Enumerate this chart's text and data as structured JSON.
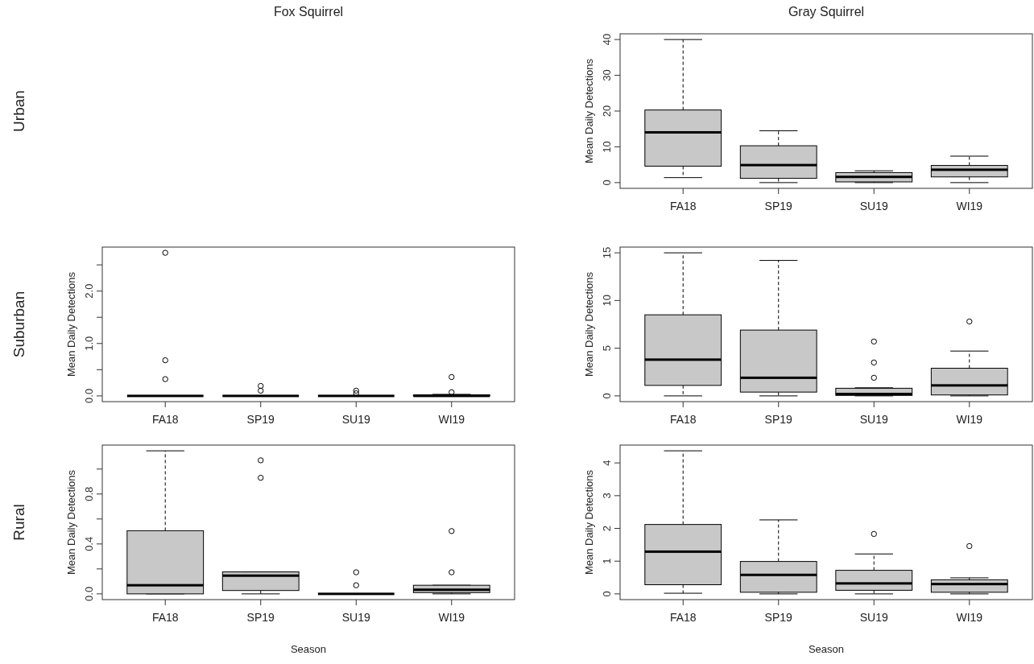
{
  "chart_data": [
    {
      "type": "box",
      "title": "Gray Squirrel",
      "annotations": [
        "Urban"
      ],
      "ylabel": "Mean Daily Detections",
      "categories": [
        "FA18",
        "SP19",
        "SU19",
        "WI19"
      ],
      "ylim": [
        -1.6,
        41.6
      ],
      "yticks": [
        0,
        10,
        20,
        30,
        40
      ],
      "boxes": [
        {
          "low": 1.4,
          "q1": 4.6,
          "median": 14.05,
          "q3": 20.3,
          "high": 40
        },
        {
          "low": 0,
          "q1": 1.2,
          "median": 4.9,
          "q3": 10.3,
          "high": 14.5
        },
        {
          "low": 0,
          "q1": 0.2,
          "median": 1.6,
          "q3": 2.8,
          "high": 3.3
        },
        {
          "low": 0,
          "q1": 1.6,
          "median": 3.6,
          "q3": 4.8,
          "high": 7.4
        }
      ]
    },
    {
      "type": "box",
      "title": "Fox Squirrel",
      "annotations": [
        "Suburban"
      ],
      "ylabel": "Mean Daily Detections",
      "categories": [
        "FA18",
        "SP19",
        "SU19",
        "WI19"
      ],
      "ylim": [
        -0.109,
        2.839
      ],
      "yticks": [
        {
          "value": 0,
          "label": "0.0"
        },
        {
          "value": 0.5,
          "label": null
        },
        {
          "value": 1,
          "label": "1.0"
        },
        {
          "value": 1.5,
          "label": null
        },
        {
          "value": 2,
          "label": "2.0"
        },
        {
          "value": 2.5,
          "label": null
        }
      ],
      "boxes": [
        {
          "low": 0,
          "q1": 0,
          "median": 0,
          "q3": 0,
          "high": 0,
          "outliers": [
            2.73,
            0.68,
            0.32
          ]
        },
        {
          "low": 0,
          "q1": 0,
          "median": 0,
          "q3": 0,
          "high": 0,
          "outliers": [
            0.19,
            0.1
          ]
        },
        {
          "low": 0,
          "q1": 0,
          "median": 0,
          "q3": 0,
          "high": 0,
          "outliers": [
            0.1,
            0.05
          ]
        },
        {
          "low": 0,
          "q1": 0,
          "median": 0,
          "q3": 0.02,
          "high": 0.03,
          "outliers": [
            0.36,
            0.07
          ]
        }
      ]
    },
    {
      "type": "box",
      "ylabel": "Mean Daily Detections",
      "categories": [
        "FA18",
        "SP19",
        "SU19",
        "WI19"
      ],
      "ylim": [
        -0.6,
        15.6
      ],
      "yticks": [
        0,
        5,
        10,
        15
      ],
      "boxes": [
        {
          "low": 0,
          "q1": 1.1,
          "median": 3.8,
          "q3": 8.5,
          "high": 15
        },
        {
          "low": 0,
          "q1": 0.4,
          "median": 1.9,
          "q3": 6.9,
          "high": 14.2
        },
        {
          "low": 0,
          "q1": 0.05,
          "median": 0.2,
          "q3": 0.8,
          "high": 0.85,
          "outliers": [
            5.7,
            3.5,
            1.9
          ]
        },
        {
          "low": 0,
          "q1": 0.1,
          "median": 1.1,
          "q3": 2.9,
          "high": 4.7,
          "outliers": [
            7.8
          ]
        }
      ]
    },
    {
      "type": "box",
      "annotations": [
        "Rural"
      ],
      "xlabel": "Season",
      "ylabel": "Mean Daily Detections",
      "categories": [
        "FA18",
        "SP19",
        "SU19",
        "WI19"
      ],
      "ylim": [
        -0.046,
        1.192
      ],
      "yticks": [
        {
          "value": 0,
          "label": "0.0"
        },
        {
          "value": 0.2,
          "label": null
        },
        {
          "value": 0.4,
          "label": "0.4"
        },
        {
          "value": 0.6,
          "label": null
        },
        {
          "value": 0.8,
          "label": "0.8"
        },
        {
          "value": 1,
          "label": null
        }
      ],
      "boxes": [
        {
          "low": 0,
          "q1": 0,
          "median": 0.069,
          "q3": 0.506,
          "high": 1.146
        },
        {
          "low": 0,
          "q1": 0.027,
          "median": 0.146,
          "q3": 0.176,
          "high": 0.176,
          "outliers": [
            1.07,
            0.93
          ]
        },
        {
          "low": 0,
          "q1": 0,
          "median": 0,
          "q3": 0,
          "high": 0,
          "outliers": [
            0.173,
            0.069
          ]
        },
        {
          "low": 0,
          "q1": 0.01,
          "median": 0.033,
          "q3": 0.069,
          "high": 0.069,
          "outliers": [
            0.503,
            0.173
          ]
        }
      ]
    },
    {
      "type": "box",
      "xlabel": "Season",
      "ylabel": "Mean Daily Detections",
      "categories": [
        "FA18",
        "SP19",
        "SU19",
        "WI19"
      ],
      "ylim": [
        -0.175,
        4.545
      ],
      "yticks": [
        0,
        1,
        2,
        3,
        4
      ],
      "boxes": [
        {
          "low": 0.02,
          "q1": 0.28,
          "median": 1.29,
          "q3": 2.12,
          "high": 4.37
        },
        {
          "low": 0,
          "q1": 0.05,
          "median": 0.58,
          "q3": 0.99,
          "high": 2.26
        },
        {
          "low": 0,
          "q1": 0.11,
          "median": 0.32,
          "q3": 0.72,
          "high": 1.22,
          "outliers": [
            1.83
          ]
        },
        {
          "low": 0,
          "q1": 0.05,
          "median": 0.3,
          "q3": 0.43,
          "high": 0.49,
          "outliers": [
            1.46
          ]
        }
      ]
    }
  ]
}
